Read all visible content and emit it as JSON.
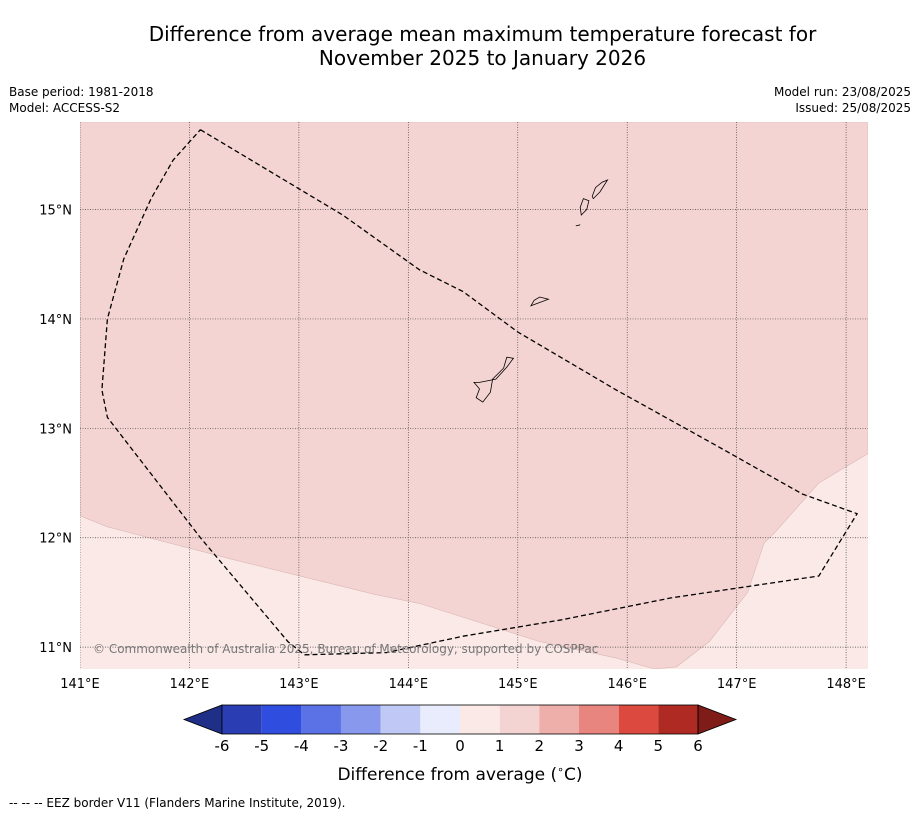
{
  "title_line1": "Difference from average mean maximum temperature forecast for",
  "title_line2": "November 2025 to January 2026",
  "meta_left": {
    "base_period": "Base period: 1981-2018",
    "model": "Model: ACCESS-S2"
  },
  "meta_right": {
    "model_run": "Model run: 23/08/2025",
    "issued": "Issued: 25/08/2025"
  },
  "map": {
    "lon_range": [
      141.0,
      148.2
    ],
    "lat_range": [
      10.8,
      15.8
    ],
    "lon_ticks": [
      {
        "value": 141,
        "label": "141°E"
      },
      {
        "value": 142,
        "label": "142°E"
      },
      {
        "value": 143,
        "label": "143°E"
      },
      {
        "value": 144,
        "label": "144°E"
      },
      {
        "value": 145,
        "label": "145°E"
      },
      {
        "value": 146,
        "label": "146°E"
      },
      {
        "value": 147,
        "label": "147°E"
      },
      {
        "value": 148,
        "label": "148°E"
      }
    ],
    "lat_ticks": [
      {
        "value": 15,
        "label": "15°N"
      },
      {
        "value": 14,
        "label": "14°N"
      },
      {
        "value": 13,
        "label": "13°N"
      },
      {
        "value": 12,
        "label": "12°N"
      },
      {
        "value": 11,
        "label": "11°N"
      }
    ],
    "gridlines": true,
    "background_category": "0 to 1",
    "background_color": "#fbe9e7",
    "warm_region": {
      "category": "1 to 2",
      "color": "#f4d4d2",
      "boundary": [
        [
          141.0,
          15.8
        ],
        [
          148.2,
          15.8
        ],
        [
          148.2,
          12.77
        ],
        [
          147.75,
          12.5
        ],
        [
          147.35,
          12.05
        ],
        [
          147.25,
          11.95
        ],
        [
          147.1,
          11.5
        ],
        [
          146.75,
          11.05
        ],
        [
          146.45,
          10.82
        ],
        [
          146.25,
          10.8
        ],
        [
          145.9,
          10.9
        ],
        [
          145.2,
          11.05
        ],
        [
          144.1,
          11.4
        ],
        [
          143.7,
          11.48
        ],
        [
          142.4,
          11.8
        ],
        [
          141.25,
          12.1
        ],
        [
          141.0,
          12.2
        ]
      ]
    },
    "islands": [
      {
        "name": "Guam",
        "outline": [
          [
            144.65,
            13.42
          ],
          [
            144.8,
            13.45
          ],
          [
            144.9,
            13.56
          ],
          [
            144.96,
            13.64
          ],
          [
            144.9,
            13.65
          ],
          [
            144.87,
            13.55
          ],
          [
            144.77,
            13.45
          ],
          [
            144.75,
            13.33
          ],
          [
            144.68,
            13.24
          ],
          [
            144.62,
            13.28
          ],
          [
            144.65,
            13.36
          ],
          [
            144.6,
            13.42
          ]
        ]
      },
      {
        "name": "Rota",
        "outline": [
          [
            145.12,
            14.12
          ],
          [
            145.2,
            14.15
          ],
          [
            145.28,
            14.18
          ],
          [
            145.2,
            14.2
          ],
          [
            145.15,
            14.17
          ],
          [
            145.12,
            14.12
          ]
        ]
      },
      {
        "name": "Tinian",
        "outline": [
          [
            145.58,
            14.95
          ],
          [
            145.63,
            15.0
          ],
          [
            145.65,
            15.08
          ],
          [
            145.6,
            15.1
          ],
          [
            145.57,
            15.02
          ],
          [
            145.58,
            14.95
          ]
        ]
      },
      {
        "name": "Saipan",
        "outline": [
          [
            145.69,
            15.1
          ],
          [
            145.75,
            15.16
          ],
          [
            145.82,
            15.27
          ],
          [
            145.77,
            15.25
          ],
          [
            145.71,
            15.2
          ],
          [
            145.68,
            15.12
          ],
          [
            145.69,
            15.1
          ]
        ]
      },
      {
        "name": "Aguijan",
        "outline": [
          [
            145.53,
            14.85
          ],
          [
            145.57,
            14.86
          ]
        ]
      }
    ],
    "eez_border": [
      [
        142.1,
        15.73
      ],
      [
        143.4,
        14.95
      ],
      [
        144.1,
        14.45
      ],
      [
        144.5,
        14.25
      ],
      [
        145.0,
        13.88
      ],
      [
        145.9,
        13.35
      ],
      [
        146.8,
        12.85
      ],
      [
        147.6,
        12.4
      ],
      [
        148.1,
        12.22
      ],
      [
        147.75,
        11.65
      ],
      [
        146.4,
        11.45
      ],
      [
        145.4,
        11.25
      ],
      [
        144.5,
        11.1
      ],
      [
        143.8,
        10.95
      ],
      [
        143.05,
        10.93
      ],
      [
        142.9,
        11.05
      ],
      [
        142.1,
        12.0
      ],
      [
        141.25,
        13.1
      ],
      [
        141.2,
        13.35
      ],
      [
        141.25,
        14.0
      ],
      [
        141.4,
        14.55
      ],
      [
        141.65,
        15.1
      ],
      [
        141.85,
        15.45
      ],
      [
        142.1,
        15.73
      ]
    ],
    "watermark": "© Commonwealth of Australia 2025, Bureau of Meteorology, supported by COSPPac"
  },
  "colorbar": {
    "label": "Difference from average (",
    "unit_sup": "∘",
    "unit_rest": "C)",
    "bins": [
      {
        "from": -6,
        "to": -5,
        "color": "#2b3db3"
      },
      {
        "from": -5,
        "to": -4,
        "color": "#2f4ee0"
      },
      {
        "from": -4,
        "to": -3,
        "color": "#5a72e6"
      },
      {
        "from": -3,
        "to": -2,
        "color": "#8898ec"
      },
      {
        "from": -2,
        "to": -1,
        "color": "#c0c8f5"
      },
      {
        "from": -1,
        "to": 0,
        "color": "#e8ecfc"
      },
      {
        "from": 0,
        "to": 1,
        "color": "#fbe9e7"
      },
      {
        "from": 1,
        "to": 2,
        "color": "#f4d4d2"
      },
      {
        "from": 2,
        "to": 3,
        "color": "#eeaeaa"
      },
      {
        "from": 3,
        "to": 4,
        "color": "#e8857e"
      },
      {
        "from": 4,
        "to": 5,
        "color": "#dc4a3f"
      },
      {
        "from": 5,
        "to": 6,
        "color": "#b02a24"
      }
    ],
    "below_color": "#1f2f88",
    "above_color": "#7f1c18",
    "tick_labels": [
      "-6",
      "-5",
      "-4",
      "-3",
      "-2",
      "-1",
      "0",
      "1",
      "2",
      "3",
      "4",
      "5",
      "6"
    ]
  },
  "footer": "--  --  -- EEZ border V11 (Flanders Marine Institute, 2019)."
}
